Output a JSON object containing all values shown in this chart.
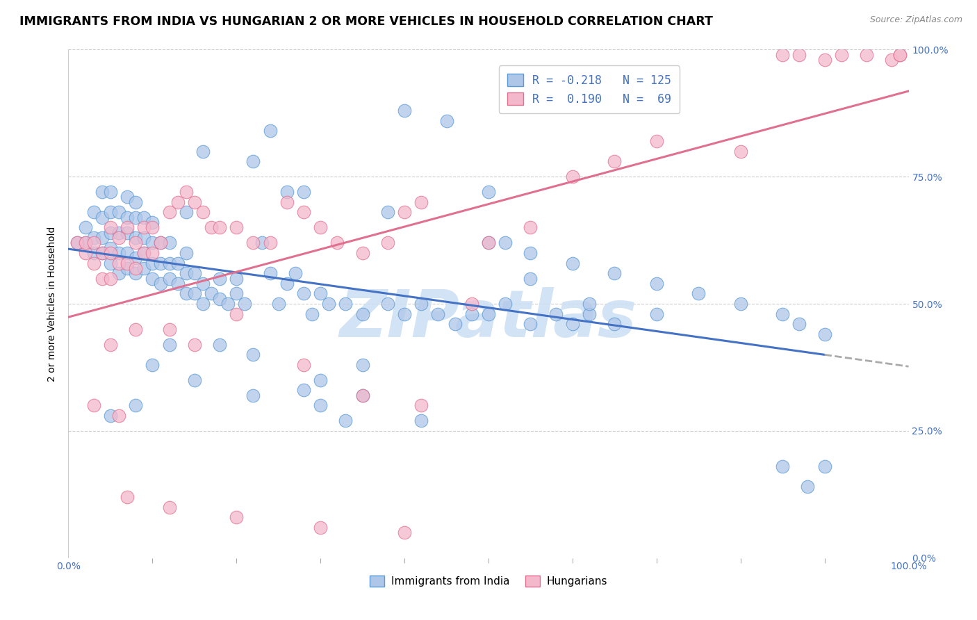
{
  "title": "IMMIGRANTS FROM INDIA VS HUNGARIAN 2 OR MORE VEHICLES IN HOUSEHOLD CORRELATION CHART",
  "source": "Source: ZipAtlas.com",
  "ylabel": "2 or more Vehicles in Household",
  "ytick_labels": [
    "0.0%",
    "25.0%",
    "50.0%",
    "75.0%",
    "100.0%"
  ],
  "legend_labels": [
    "Immigrants from India",
    "Hungarians"
  ],
  "blue_R": -0.218,
  "blue_N": 125,
  "pink_R": 0.19,
  "pink_N": 69,
  "blue_fill": "#aec6e8",
  "pink_fill": "#f4b8cc",
  "blue_edge": "#5b9bd5",
  "pink_edge": "#e07090",
  "blue_line": "#4472c4",
  "pink_line": "#e07090",
  "watermark_color": "#cde0f5",
  "title_fontsize": 12.5,
  "source_fontsize": 9,
  "ylabel_fontsize": 10,
  "tick_fontsize": 10,
  "legend_fontsize": 12,
  "blue_scatter_x": [
    0.01,
    0.02,
    0.02,
    0.03,
    0.03,
    0.03,
    0.04,
    0.04,
    0.04,
    0.04,
    0.05,
    0.05,
    0.05,
    0.05,
    0.05,
    0.06,
    0.06,
    0.06,
    0.06,
    0.07,
    0.07,
    0.07,
    0.07,
    0.07,
    0.08,
    0.08,
    0.08,
    0.08,
    0.09,
    0.09,
    0.09,
    0.09,
    0.1,
    0.1,
    0.1,
    0.1,
    0.11,
    0.11,
    0.11,
    0.12,
    0.12,
    0.12,
    0.13,
    0.13,
    0.14,
    0.14,
    0.14,
    0.15,
    0.15,
    0.16,
    0.16,
    0.17,
    0.18,
    0.18,
    0.19,
    0.2,
    0.2,
    0.21,
    0.22,
    0.23,
    0.24,
    0.25,
    0.26,
    0.27,
    0.28,
    0.29,
    0.3,
    0.31,
    0.33,
    0.35,
    0.38,
    0.4,
    0.42,
    0.44,
    0.46,
    0.48,
    0.5,
    0.52,
    0.55,
    0.58,
    0.6,
    0.62,
    0.65,
    0.42,
    0.33,
    0.22,
    0.15,
    0.08,
    0.05,
    0.1,
    0.18,
    0.3,
    0.12,
    0.22,
    0.35,
    0.08,
    0.14,
    0.28,
    0.5,
    0.55,
    0.6,
    0.65,
    0.7,
    0.75,
    0.8,
    0.85,
    0.87,
    0.9,
    0.26,
    0.38,
    0.52,
    0.16,
    0.24,
    0.45,
    0.5,
    0.4,
    0.35,
    0.3,
    0.28,
    0.55,
    0.62,
    0.7,
    0.85,
    0.88,
    0.9
  ],
  "blue_scatter_y": [
    0.62,
    0.62,
    0.65,
    0.6,
    0.63,
    0.68,
    0.6,
    0.63,
    0.67,
    0.72,
    0.58,
    0.61,
    0.64,
    0.68,
    0.72,
    0.56,
    0.6,
    0.64,
    0.68,
    0.57,
    0.6,
    0.64,
    0.67,
    0.71,
    0.56,
    0.59,
    0.63,
    0.67,
    0.57,
    0.6,
    0.63,
    0.67,
    0.55,
    0.58,
    0.62,
    0.66,
    0.54,
    0.58,
    0.62,
    0.55,
    0.58,
    0.62,
    0.54,
    0.58,
    0.52,
    0.56,
    0.6,
    0.52,
    0.56,
    0.5,
    0.54,
    0.52,
    0.51,
    0.55,
    0.5,
    0.52,
    0.55,
    0.5,
    0.78,
    0.62,
    0.56,
    0.5,
    0.54,
    0.56,
    0.52,
    0.48,
    0.52,
    0.5,
    0.5,
    0.48,
    0.5,
    0.48,
    0.5,
    0.48,
    0.46,
    0.48,
    0.48,
    0.5,
    0.46,
    0.48,
    0.46,
    0.48,
    0.46,
    0.27,
    0.27,
    0.32,
    0.35,
    0.3,
    0.28,
    0.38,
    0.42,
    0.3,
    0.42,
    0.4,
    0.32,
    0.7,
    0.68,
    0.72,
    0.62,
    0.6,
    0.58,
    0.56,
    0.54,
    0.52,
    0.5,
    0.48,
    0.46,
    0.44,
    0.72,
    0.68,
    0.62,
    0.8,
    0.84,
    0.86,
    0.72,
    0.88,
    0.38,
    0.35,
    0.33,
    0.55,
    0.5,
    0.48,
    0.18,
    0.14,
    0.18
  ],
  "pink_scatter_x": [
    0.01,
    0.02,
    0.02,
    0.03,
    0.03,
    0.04,
    0.04,
    0.05,
    0.05,
    0.05,
    0.06,
    0.06,
    0.07,
    0.07,
    0.08,
    0.08,
    0.09,
    0.09,
    0.1,
    0.1,
    0.11,
    0.12,
    0.13,
    0.14,
    0.15,
    0.16,
    0.17,
    0.18,
    0.2,
    0.22,
    0.24,
    0.26,
    0.28,
    0.3,
    0.32,
    0.35,
    0.38,
    0.4,
    0.42,
    0.5,
    0.55,
    0.6,
    0.65,
    0.7,
    0.8,
    0.85,
    0.87,
    0.9,
    0.92,
    0.95,
    0.98,
    0.99,
    0.99,
    0.05,
    0.08,
    0.12,
    0.15,
    0.03,
    0.06,
    0.2,
    0.28,
    0.35,
    0.42,
    0.48,
    0.07,
    0.12,
    0.2,
    0.3,
    0.4
  ],
  "pink_scatter_y": [
    0.62,
    0.6,
    0.62,
    0.58,
    0.62,
    0.55,
    0.6,
    0.55,
    0.6,
    0.65,
    0.58,
    0.63,
    0.58,
    0.65,
    0.57,
    0.62,
    0.6,
    0.65,
    0.6,
    0.65,
    0.62,
    0.68,
    0.7,
    0.72,
    0.7,
    0.68,
    0.65,
    0.65,
    0.65,
    0.62,
    0.62,
    0.7,
    0.68,
    0.65,
    0.62,
    0.6,
    0.62,
    0.68,
    0.7,
    0.62,
    0.65,
    0.75,
    0.78,
    0.82,
    0.8,
    0.99,
    0.99,
    0.98,
    0.99,
    0.99,
    0.98,
    0.99,
    0.99,
    0.42,
    0.45,
    0.45,
    0.42,
    0.3,
    0.28,
    0.48,
    0.38,
    0.32,
    0.3,
    0.5,
    0.12,
    0.1,
    0.08,
    0.06,
    0.05
  ]
}
